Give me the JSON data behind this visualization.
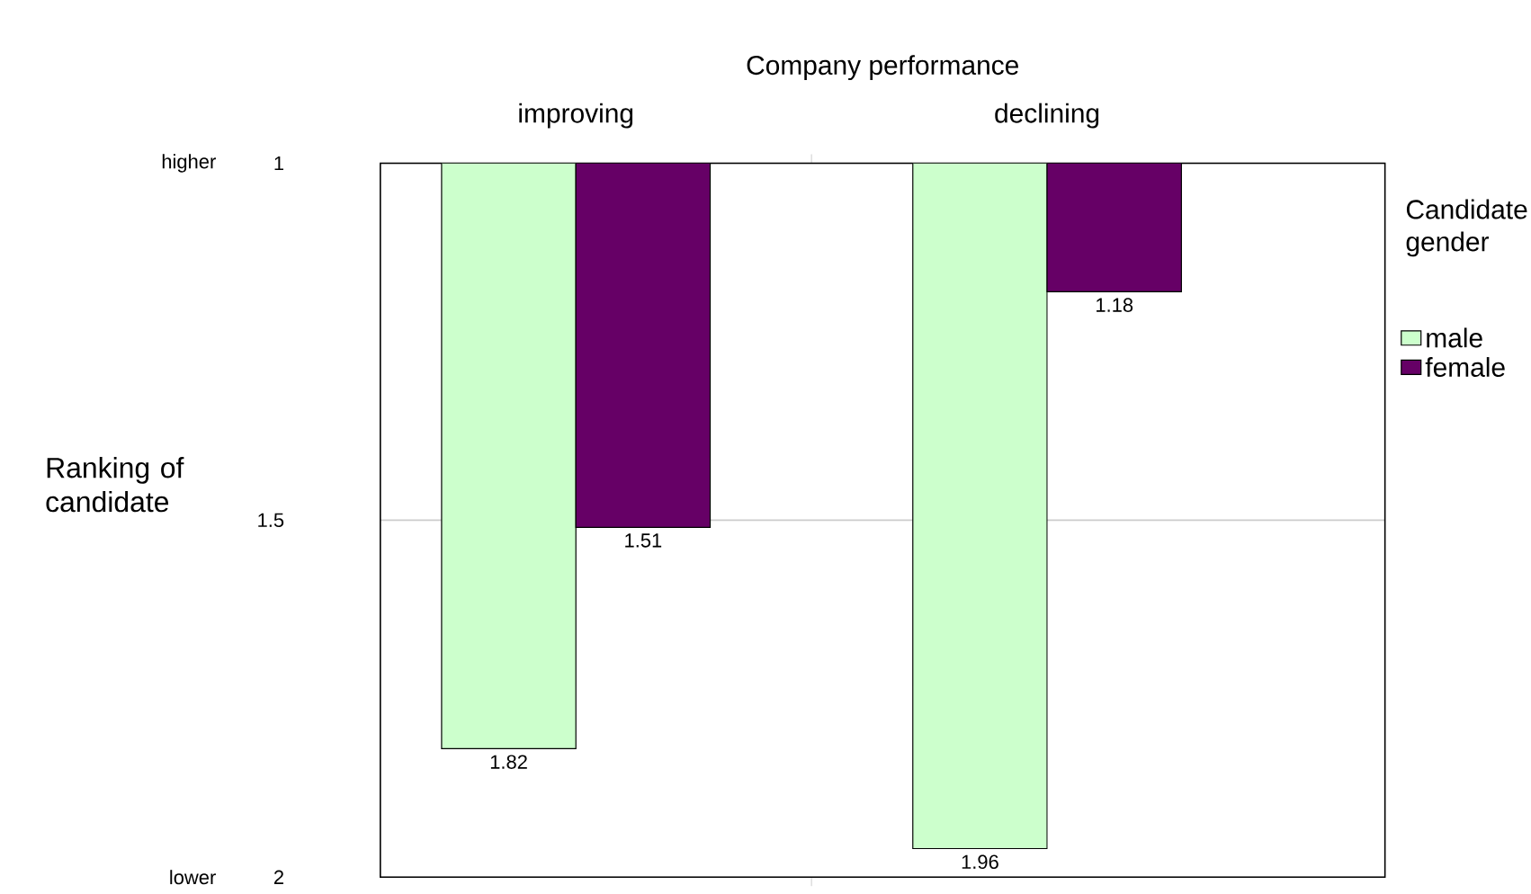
{
  "chart_data": {
    "type": "bar",
    "xlabel": "Company performance",
    "ylabel": "Ranking of candidate",
    "legend_title": "Candidate gender",
    "categories": [
      "improving",
      "declining"
    ],
    "series": [
      {
        "name": "male",
        "color": "#ccffcc",
        "values": [
          1.82,
          1.96
        ]
      },
      {
        "name": "female",
        "color": "#660066",
        "values": [
          1.51,
          1.18
        ]
      }
    ],
    "ylim": [
      2,
      1
    ],
    "yticks": [
      1,
      1.5,
      2
    ],
    "grid": "y",
    "legend": "right",
    "data_labels": true,
    "annotations": [
      "higher",
      "lower"
    ]
  }
}
